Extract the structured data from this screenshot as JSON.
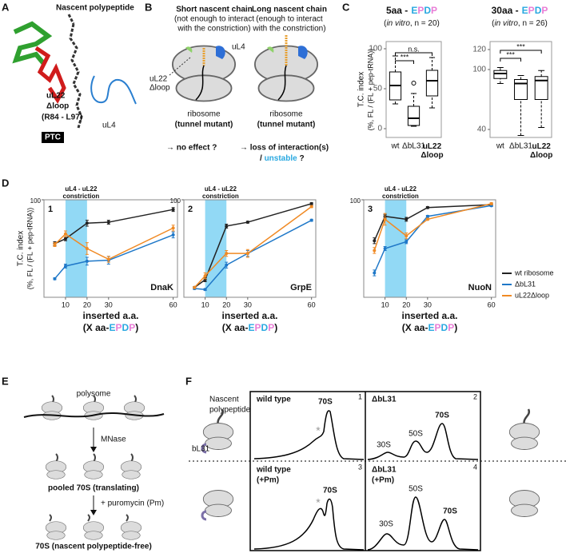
{
  "labels": {
    "a": "A",
    "b": "B",
    "c": "C",
    "d": "D",
    "e": "E",
    "f": "F"
  },
  "panel_a": {
    "nascent": "Nascent polypeptide",
    "ul22": "uL22",
    "dloop": "Δloop",
    "range": "(R84 - L97)",
    "ptc": "PTC",
    "ul4": "uL4"
  },
  "panel_b": {
    "short_1": "Short nascent chain",
    "short_2": "(not enough to interact",
    "short_3": "with the constriction)",
    "long_1": "Long nascent chain",
    "long_2": "(enough to interact",
    "long_3": "with the constriction)",
    "ul4": "uL4",
    "ul22": "uL22",
    "dloop": "Δloop",
    "ribosome_1": "ribosome",
    "mutant_1": "(tunnel mutant)",
    "ribosome_2": "ribosome",
    "mutant_2": "(tunnel mutant)",
    "effect_1": "→ no effect ?",
    "effect_2": "→ loss of interaction(s)",
    "effect_3_pre": "/",
    "effect_3_word": "unstable",
    "effect_3_post": "?"
  },
  "chart_data": [
    {
      "type": "box",
      "title": "5aa -",
      "tag": [
        "E",
        "P",
        "D",
        "P"
      ],
      "tag_colors": [
        "#29a8e0",
        "#e87dd6",
        "#29a8e0",
        "#e87dd6"
      ],
      "subtitle_pre": "(",
      "subtitle_italic": "in vitro",
      "subtitle_post": ", n = 20)",
      "ylabel": [
        "T.C. index",
        "(%, FL / (FL + pep-tRNA))"
      ],
      "categories": [
        "wt",
        "ΔbL31",
        "uL22 Δloop"
      ],
      "boxes": [
        {
          "whislo": 31,
          "q1": 36,
          "median": 54,
          "q3": 71,
          "whishi": 91,
          "fliers": []
        },
        {
          "whislo": 3,
          "q1": 4,
          "median": 13,
          "q3": 28,
          "whishi": 44,
          "fliers": [
            57
          ]
        },
        {
          "whislo": 26,
          "q1": 41,
          "median": 60,
          "q3": 73,
          "whishi": 89,
          "fliers": []
        }
      ],
      "significance": [
        {
          "label": "***",
          "between": [
            "wt",
            "ΔbL31"
          ]
        },
        {
          "label": "n.s.",
          "between": [
            "wt",
            "uL22 Δloop"
          ]
        }
      ],
      "ylim": [
        -11,
        109
      ],
      "yticks": [
        0,
        50,
        100
      ]
    },
    {
      "type": "box",
      "title": "30aa -",
      "tag": [
        "E",
        "P",
        "D",
        "P"
      ],
      "tag_colors": [
        "#29a8e0",
        "#e87dd6",
        "#29a8e0",
        "#e87dd6"
      ],
      "subtitle_pre": "(",
      "subtitle_italic": "in vitro",
      "subtitle_post": ", n = 26)",
      "categories": [
        "wt",
        "ΔbL31",
        "uL22 Δloop"
      ],
      "boxes": [
        {
          "whislo": 86,
          "q1": 91,
          "median": 96,
          "q3": 99,
          "whishi": 102,
          "fliers": []
        },
        {
          "whislo": 34,
          "q1": 70,
          "median": 86,
          "q3": 90,
          "whishi": 94,
          "fliers": []
        },
        {
          "whislo": 42,
          "q1": 70,
          "median": 89,
          "q3": 93,
          "whishi": 99,
          "fliers": []
        }
      ],
      "significance": [
        {
          "label": "***",
          "between": [
            "wt",
            "ΔbL31"
          ]
        },
        {
          "label": "***",
          "between": [
            "wt",
            "uL22 Δloop"
          ]
        }
      ],
      "ylim": [
        32,
        128
      ],
      "yticks": [
        40,
        100,
        120
      ]
    },
    {
      "type": "line",
      "number": "1",
      "gene": "DnaK",
      "header": [
        "uL4 - uL22",
        "constriction"
      ],
      "highlight": [
        10,
        20
      ],
      "highlight_color": "#92d9f5",
      "ylabel": [
        "T.C. index",
        "(%, FL / (FL + pep-tRNA))"
      ],
      "xlabel": "inserted a.a.",
      "xlabel_pre": "(X aa-",
      "tag": [
        "E",
        "P",
        "D",
        "P"
      ],
      "tag_colors": [
        "#29a8e0",
        "#e87dd6",
        "#29a8e0",
        "#e87dd6"
      ],
      "xlabel_post": ")",
      "x": [
        5,
        10,
        20,
        30,
        60
      ],
      "xlim": [
        0,
        62
      ],
      "xticks": [
        10,
        20,
        30,
        60
      ],
      "ylim": [
        0,
        100
      ],
      "yticks": [
        100
      ],
      "series": [
        {
          "name": "wt ribosome",
          "color": "#222222",
          "values": [
            55,
            60,
            76,
            77,
            90
          ],
          "errors": [
            2,
            2,
            3,
            2,
            2
          ]
        },
        {
          "name": "ΔbL31",
          "color": "#1f78c8",
          "values": [
            19,
            32,
            37,
            38,
            64
          ],
          "errors": [
            1,
            2,
            4,
            4,
            3
          ]
        },
        {
          "name": "uL22Δloop",
          "color": "#f08a24",
          "values": [
            54,
            65,
            50,
            39,
            71
          ],
          "errors": [
            2,
            3,
            6,
            3,
            3
          ]
        }
      ]
    },
    {
      "type": "line",
      "number": "2",
      "gene": "GrpE",
      "header": [
        "uL4 - uL22",
        "constriction"
      ],
      "highlight": [
        10,
        20
      ],
      "highlight_color": "#92d9f5",
      "xlabel": "inserted a.a.",
      "xlabel_pre": "(X aa-",
      "tag": [
        "E",
        "P",
        "D",
        "P"
      ],
      "tag_colors": [
        "#29a8e0",
        "#e87dd6",
        "#29a8e0",
        "#e87dd6"
      ],
      "xlabel_post": ")",
      "x": [
        5,
        10,
        20,
        30,
        60
      ],
      "xlim": [
        0,
        62
      ],
      "xticks": [
        10,
        20,
        30,
        60
      ],
      "ylim": [
        0,
        100
      ],
      "yticks": [
        100
      ],
      "series": [
        {
          "name": "wt ribosome",
          "color": "#222222",
          "values": [
            10,
            18,
            73,
            77,
            96
          ],
          "errors": [
            1,
            2,
            2,
            1,
            1
          ]
        },
        {
          "name": "ΔbL31",
          "color": "#1f78c8",
          "values": [
            9,
            8,
            33,
            45,
            79
          ],
          "errors": [
            1,
            1,
            3,
            3,
            1
          ]
        },
        {
          "name": "uL22Δloop",
          "color": "#f08a24",
          "values": [
            10,
            22,
            45,
            45,
            93
          ],
          "errors": [
            1,
            3,
            3,
            4,
            1
          ]
        }
      ]
    },
    {
      "type": "line",
      "number": "3",
      "gene": "NuoN",
      "header": [
        "uL4 - uL22",
        "constriction"
      ],
      "highlight": [
        10,
        20
      ],
      "highlight_color": "#92d9f5",
      "xlabel": "inserted a.a.",
      "xlabel_pre": "(X aa-",
      "tag": [
        "E",
        "P",
        "D",
        "P"
      ],
      "tag_colors": [
        "#29a8e0",
        "#e87dd6",
        "#29a8e0",
        "#e87dd6"
      ],
      "xlabel_post": ")",
      "x": [
        5,
        10,
        20,
        30,
        60
      ],
      "xlim": [
        0,
        62
      ],
      "xticks": [
        10,
        20,
        30,
        60
      ],
      "ylim": [
        0,
        100
      ],
      "yticks": [
        100
      ],
      "legend": "right",
      "series": [
        {
          "name": "wt ribosome",
          "color": "#222222",
          "values": [
            58,
            83,
            80,
            92,
            95
          ],
          "errors": [
            3,
            2,
            2,
            1,
            1
          ]
        },
        {
          "name": "ΔbL31",
          "color": "#1f78c8",
          "values": [
            25,
            50,
            57,
            83,
            94
          ],
          "errors": [
            3,
            2,
            2,
            1,
            1
          ]
        },
        {
          "name": "uL22Δloop",
          "color": "#f08a24",
          "values": [
            48,
            80,
            63,
            80,
            96
          ],
          "errors": [
            3,
            6,
            3,
            1,
            1
          ]
        }
      ]
    }
  ],
  "panel_e": {
    "polysome": "polysome",
    "mnase": "MNase",
    "pooled": "pooled 70S (translating)",
    "puromycin": "+ puromycin (Pm)",
    "free": "70S (nascent polypeptide-free)"
  },
  "panel_f": {
    "nascent_1": "Nascent",
    "nascent_2": "polypeptide",
    "bl31": "bL31",
    "p1_title": "wild type",
    "p1_num": "1",
    "p1_70s": "70S",
    "p1_star": "*",
    "p2_title": "ΔbL31",
    "p2_num": "2",
    "p2_70s": "70S",
    "p2_50s": "50S",
    "p2_30s": "30S",
    "p3_title": "wild type",
    "p3_sub": "(+Pm)",
    "p3_num": "3",
    "p3_70s": "70S",
    "p3_star": "*",
    "p4_title": "ΔbL31",
    "p4_sub": "(+Pm)",
    "p4_num": "4",
    "p4_50s": "50S",
    "p4_30s": "30S",
    "p4_70s": "70S"
  }
}
